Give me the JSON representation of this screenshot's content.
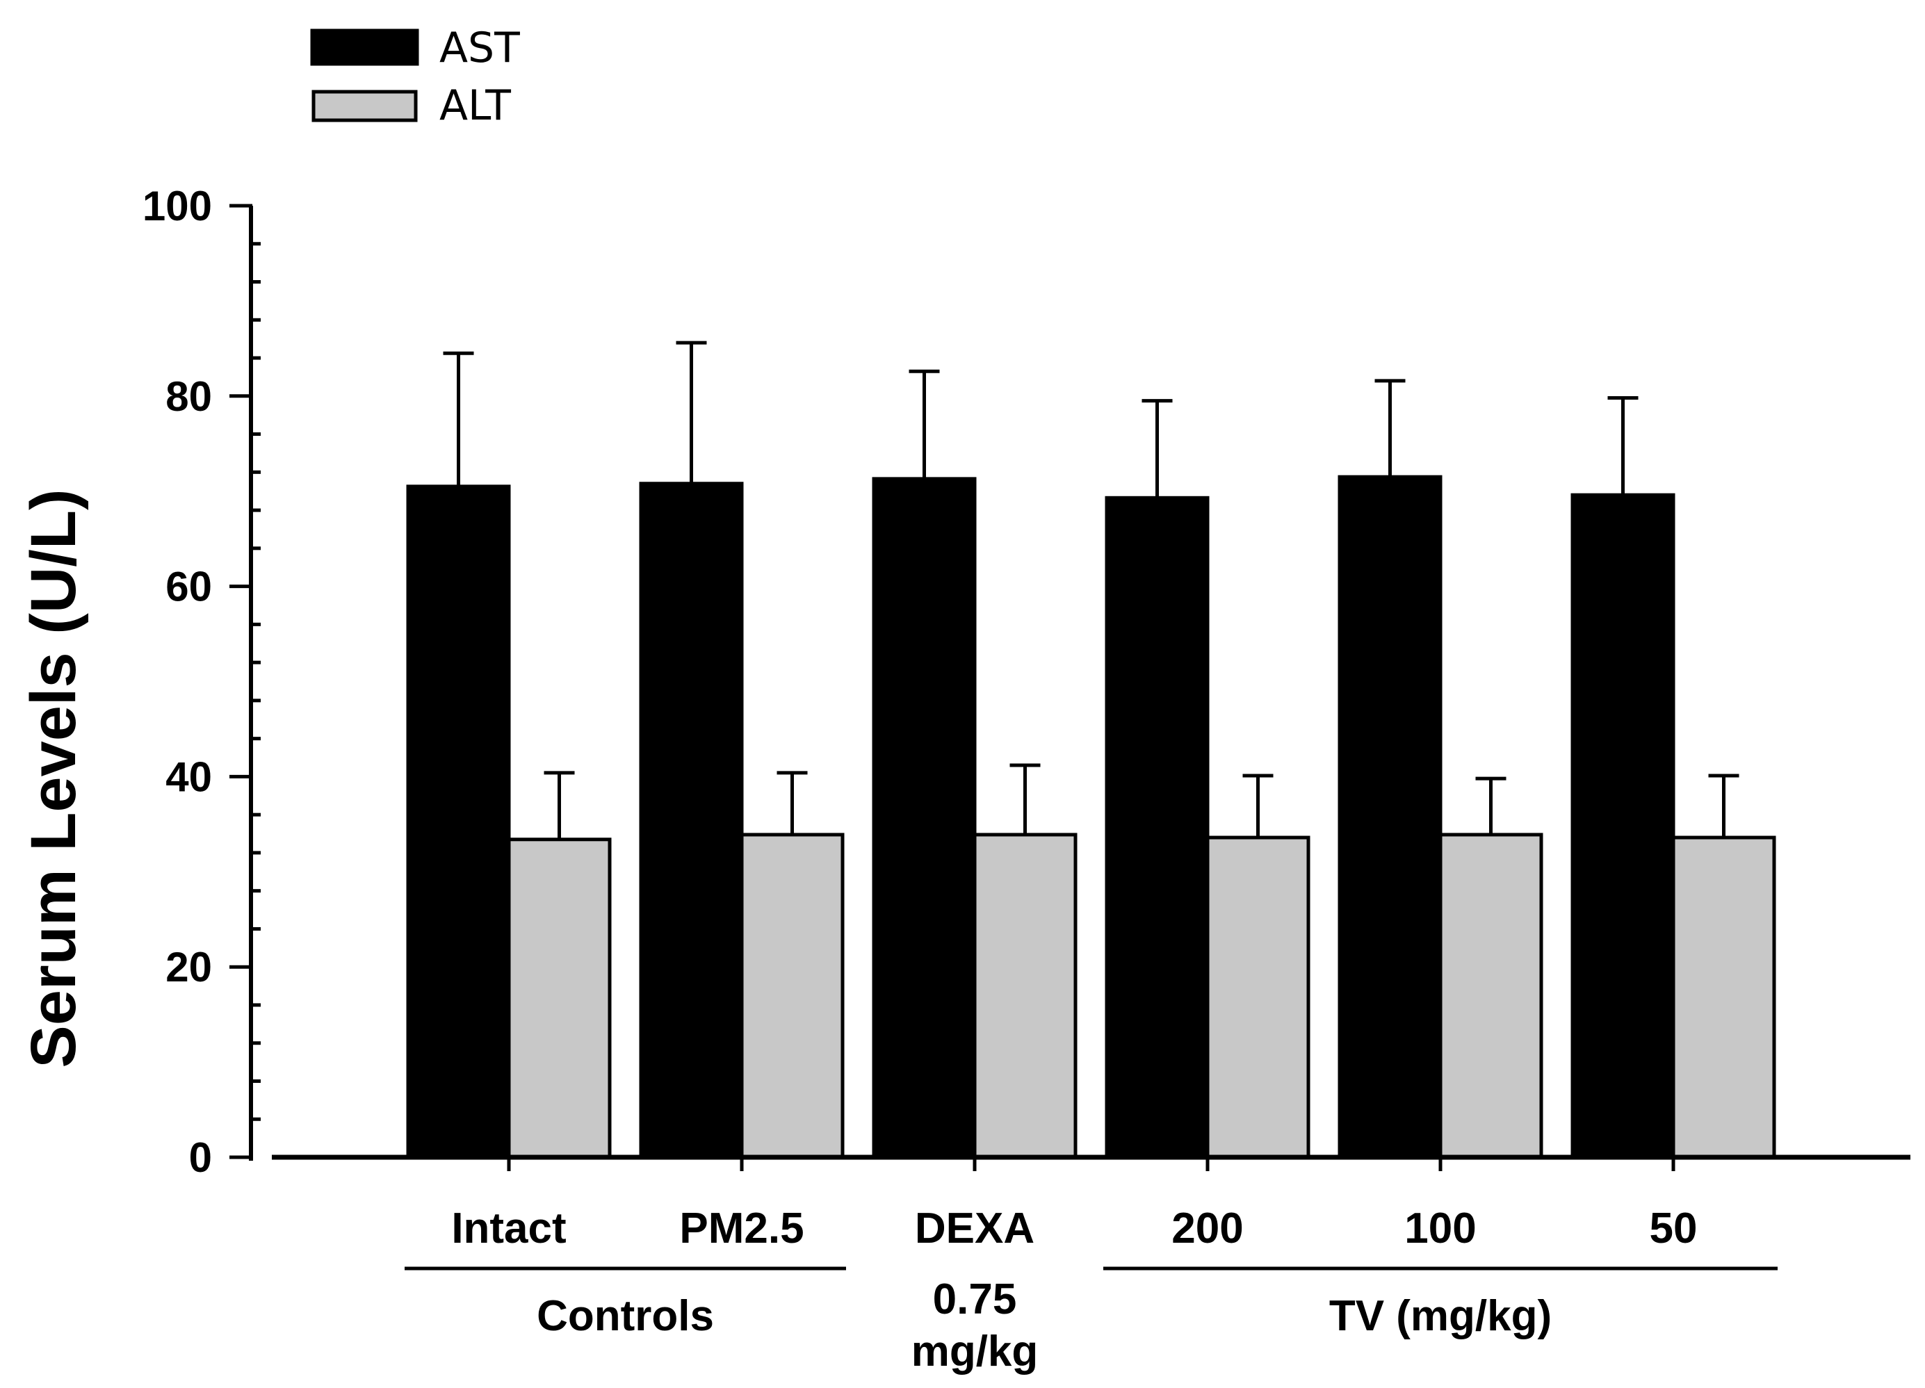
{
  "chart_data": {
    "type": "bar",
    "ylabel": "Serum Levels (U/L)",
    "ylim": [
      0,
      100
    ],
    "yticks": [
      "0",
      "20",
      "40",
      "60",
      "80",
      "100"
    ],
    "categories": [
      "Intact",
      "PM2.5",
      "DEXA",
      "200",
      "100",
      "50"
    ],
    "groups": [
      {
        "label": "Controls",
        "members": [
          "Intact",
          "PM2.5"
        ]
      },
      {
        "label": "0.75 mg/kg",
        "lines": [
          "0.75",
          "mg/kg"
        ],
        "members": [
          "DEXA"
        ]
      },
      {
        "label": "TV (mg/kg)",
        "members": [
          "200",
          "100",
          "50"
        ]
      }
    ],
    "series": [
      {
        "name": "AST",
        "color": "#000000",
        "values": [
          70.5,
          70.8,
          71.3,
          69.3,
          71.5,
          69.6
        ],
        "errors": [
          14.0,
          14.8,
          11.3,
          10.2,
          10.1,
          10.2
        ]
      },
      {
        "name": "ALT",
        "color": "#c8c8c8",
        "values": [
          33.4,
          33.9,
          33.9,
          33.6,
          33.9,
          33.6
        ],
        "errors": [
          7.0,
          6.5,
          7.3,
          6.5,
          5.9,
          6.5
        ]
      }
    ],
    "legend": {
      "entries": [
        "AST",
        "ALT"
      ],
      "position": "top-left"
    }
  }
}
